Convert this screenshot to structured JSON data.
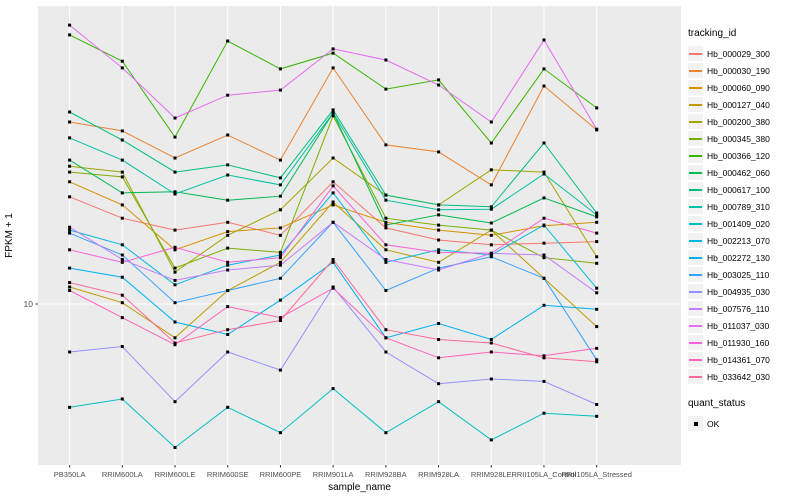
{
  "chart_data": {
    "type": "line",
    "title": "",
    "xlabel": "sample_name",
    "ylabel": "FPKM + 1",
    "y_scale": "log10",
    "y_ticks": [
      {
        "value": 10,
        "label": "10"
      }
    ],
    "ylim_px_note": "log axis, only tick 10 labeled; values ~2.6 to ~90",
    "grid": "white major gridlines on gray panel",
    "legend_position": "right",
    "panel_bg": "#EBEBEB",
    "grid_color": "#FFFFFF",
    "tick_text_color": "#4D4D4D",
    "axis_title_color": "#000000",
    "categories": [
      "PB350LA",
      "RRIM600LA",
      "RRIM600LE",
      "RRIM600SE",
      "RRIM600PE",
      "RRIM901LA",
      "RRIM928BA",
      "RRIM928LA",
      "RRIM928LE",
      "RRII105LA_Control",
      "RRII105LA_Stressed"
    ],
    "color_legend_title": "tracking_id",
    "shape_legend_title": "quant_status",
    "shape_legend_items": [
      {
        "label": "OK",
        "marker": "black-square"
      }
    ],
    "series": [
      {
        "name": "Hb_000029_300",
        "color": "#F8766D",
        "values": [
          22.9,
          19.4,
          17.7,
          18.8,
          17.0,
          25.7,
          18.0,
          16.4,
          15.8,
          16.0,
          16.2
        ]
      },
      {
        "name": "Hb_000030_190",
        "color": "#EA8331",
        "values": [
          40.8,
          38.1,
          30.9,
          36.9,
          30.4,
          62.0,
          34.2,
          32.4,
          25.1,
          53.9,
          38.4
        ]
      },
      {
        "name": "Hb_000060_090",
        "color": "#D89000",
        "values": [
          25.7,
          21.5,
          15.2,
          17.5,
          18.0,
          21.5,
          18.8,
          17.7,
          17.0,
          18.3,
          18.8
        ]
      },
      {
        "name": "Hb_000127_040",
        "color": "#C09B00",
        "values": [
          11.4,
          10.1,
          7.7,
          11.1,
          13.8,
          22.0,
          15.2,
          13.8,
          17.7,
          12.2,
          8.4
        ]
      },
      {
        "name": "Hb_000200_380",
        "color": "#A3A500",
        "values": [
          29.0,
          27.7,
          12.8,
          17.0,
          20.7,
          30.9,
          23.2,
          21.5,
          28.2,
          27.7,
          14.4
        ]
      },
      {
        "name": "Hb_000345_380",
        "color": "#7CAE00",
        "values": [
          27.7,
          26.7,
          13.2,
          15.4,
          14.9,
          42.8,
          19.4,
          18.4,
          17.7,
          14.3,
          13.7
        ]
      },
      {
        "name": "Hb_000366_120",
        "color": "#39B600",
        "values": [
          80.0,
          65.3,
          36.3,
          76.3,
          61.5,
          69.5,
          52.6,
          56.5,
          34.7,
          61.5,
          45.5
        ]
      },
      {
        "name": "Hb_000462_060",
        "color": "#00BB4E",
        "values": [
          30.4,
          23.6,
          23.8,
          22.3,
          23.0,
          43.8,
          18.4,
          19.9,
          18.7,
          22.7,
          19.6
        ]
      },
      {
        "name": "Hb_000617_100",
        "color": "#00BF7D",
        "values": [
          44.1,
          35.5,
          27.7,
          29.3,
          26.5,
          44.8,
          23.2,
          21.5,
          21.2,
          34.7,
          20.2
        ]
      },
      {
        "name": "Hb_000789_310",
        "color": "#00C1A3",
        "values": [
          36.1,
          30.4,
          23.4,
          27.1,
          25.1,
          43.8,
          22.3,
          20.7,
          20.8,
          27.3,
          19.9
        ]
      },
      {
        "name": "Hb_001409_020",
        "color": "#00BFC4",
        "values": [
          4.5,
          4.8,
          3.3,
          4.5,
          3.7,
          5.2,
          3.7,
          4.7,
          3.5,
          4.3,
          4.2
        ]
      },
      {
        "name": "Hb_002213_070",
        "color": "#00BAE0",
        "values": [
          17.7,
          15.8,
          11.6,
          13.5,
          14.6,
          23.6,
          13.8,
          15.2,
          14.6,
          18.4,
          11.3
        ]
      },
      {
        "name": "Hb_002272_130",
        "color": "#00B0F6",
        "values": [
          13.2,
          12.3,
          8.7,
          7.9,
          10.3,
          13.8,
          7.7,
          8.6,
          7.6,
          9.9,
          9.6
        ]
      },
      {
        "name": "Hb_003025_110",
        "color": "#35A2FF",
        "values": [
          17.3,
          14.6,
          10.1,
          11.1,
          12.2,
          18.8,
          11.1,
          13.2,
          14.4,
          12.2,
          6.5
        ]
      },
      {
        "name": "Hb_004935_030",
        "color": "#9590FF",
        "values": [
          6.9,
          7.2,
          4.7,
          6.9,
          6.0,
          11.4,
          6.9,
          5.4,
          5.6,
          5.5,
          4.6
        ]
      },
      {
        "name": "Hb_007576_110",
        "color": "#C77CFF",
        "values": [
          18.1,
          14.1,
          12.0,
          13.0,
          13.5,
          18.8,
          14.1,
          13.0,
          14.8,
          14.6,
          10.9
        ]
      },
      {
        "name": "Hb_011037_030",
        "color": "#E76BF3",
        "values": [
          86.3,
          62.0,
          42.1,
          50.2,
          52.2,
          71.8,
          65.9,
          54.3,
          40.8,
          76.9,
          38.6
        ]
      },
      {
        "name": "Hb_011930_160",
        "color": "#FA62DB",
        "values": [
          15.2,
          13.8,
          15.5,
          13.8,
          14.3,
          24.9,
          15.8,
          14.9,
          14.8,
          19.4,
          17.3
        ]
      },
      {
        "name": "Hb_014361_070",
        "color": "#FF62BC",
        "values": [
          11.1,
          9.0,
          7.3,
          9.8,
          9.0,
          11.3,
          7.7,
          6.6,
          6.9,
          6.7,
          7.1
        ]
      },
      {
        "name": "Hb_033642_030",
        "color": "#FF6A97",
        "values": [
          11.8,
          10.7,
          7.4,
          8.2,
          8.8,
          14.1,
          8.2,
          7.6,
          7.4,
          6.6,
          6.4
        ]
      }
    ]
  }
}
